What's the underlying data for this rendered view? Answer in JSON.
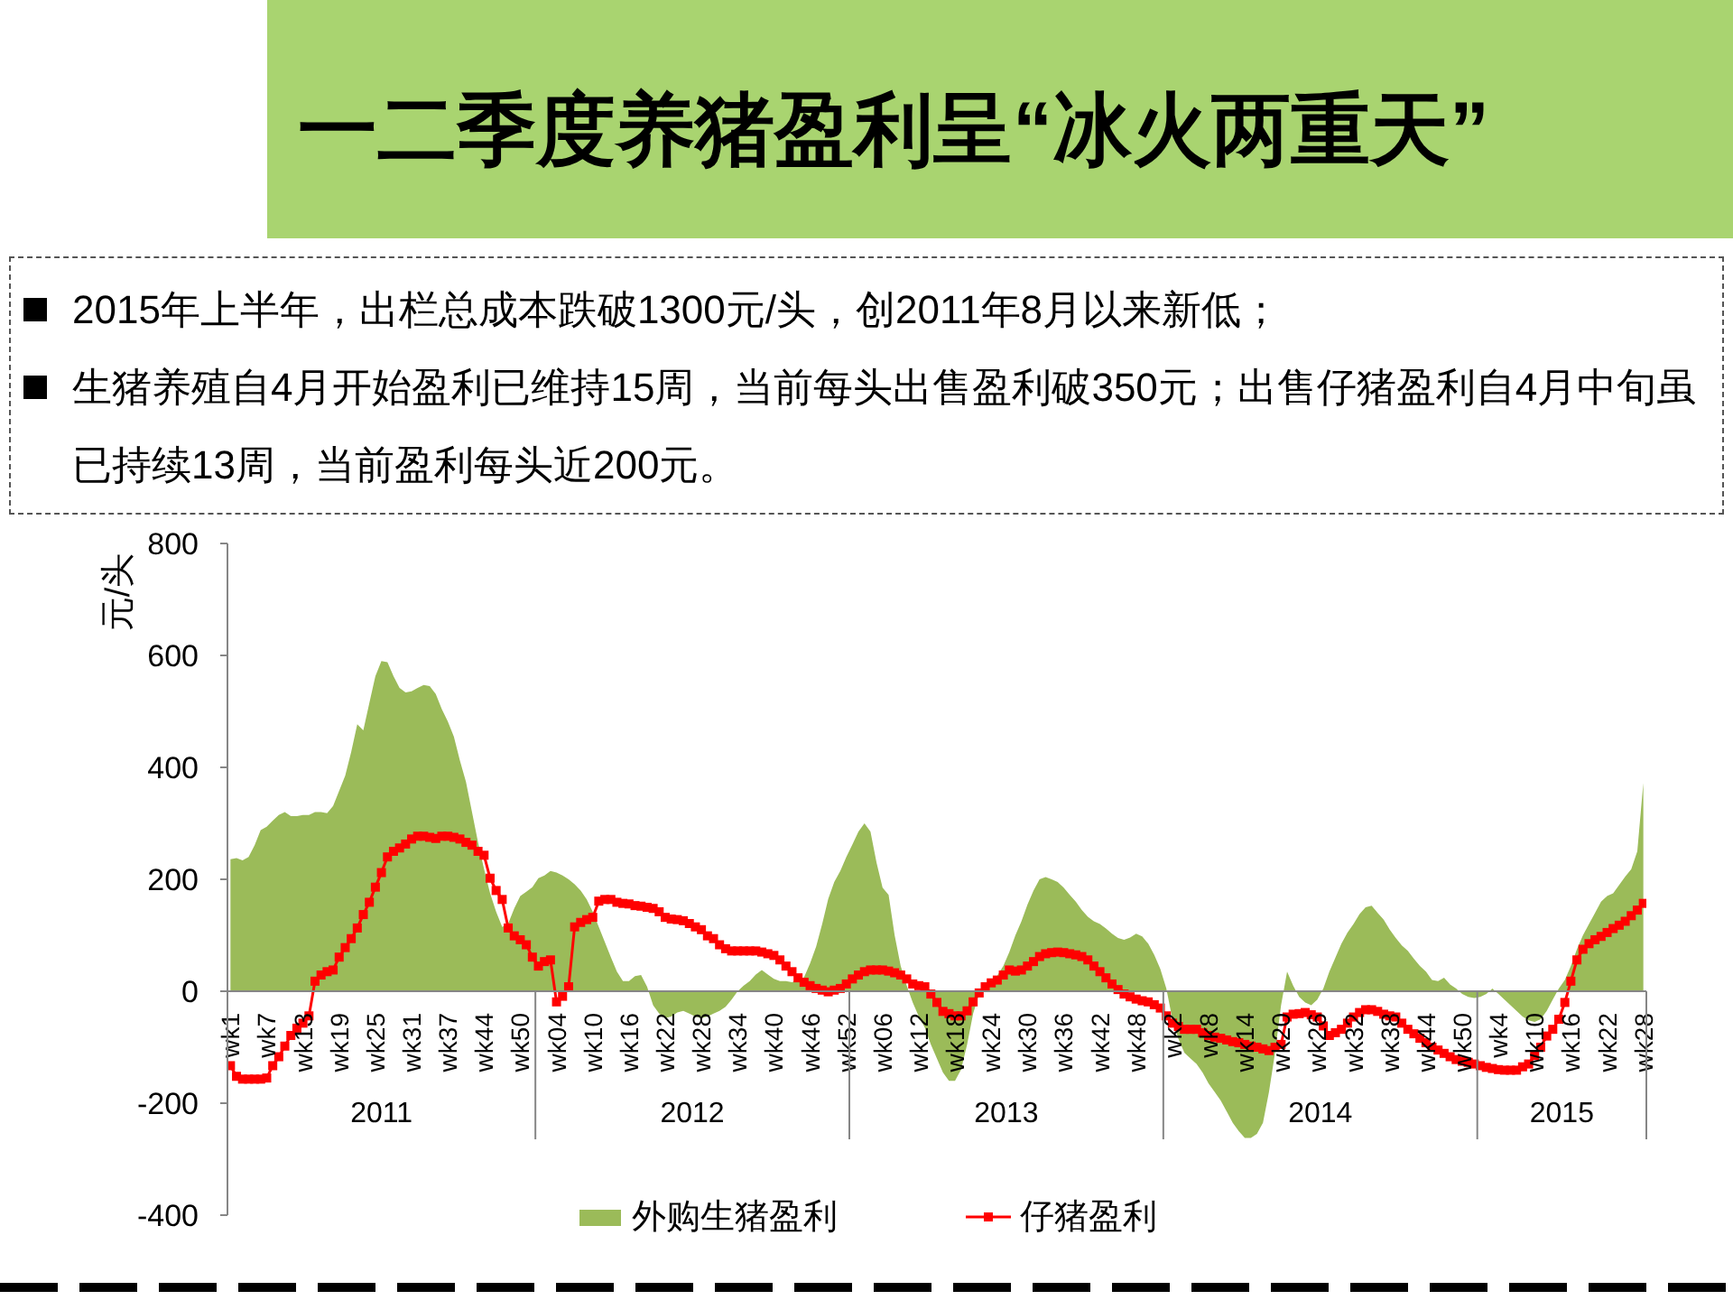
{
  "chart_data": {
    "type": "line",
    "title": "一二季度养猪盈利呈“冰火两重天”",
    "ylabel": "元/头",
    "annotations": [
      "2015年上半年，出栏总成本跌破1300元/头，创2011年8月以来新低；",
      "生猪养殖自4月开始盈利已维持15周，当前每头出售盈利破350元；出售仔猪盈利自4月中旬虽已持续13周，当前盈利每头近200元。",
      "2011",
      "2012",
      "2013",
      "2014",
      "2015"
    ],
    "categories": [
      "wk1",
      null,
      null,
      null,
      null,
      null,
      "wk7",
      null,
      null,
      null,
      null,
      null,
      "wk13",
      null,
      null,
      null,
      null,
      null,
      "wk19",
      null,
      null,
      null,
      null,
      null,
      "wk25",
      null,
      null,
      null,
      null,
      null,
      "wk31",
      null,
      null,
      null,
      null,
      null,
      "wk37",
      null,
      null,
      null,
      null,
      null,
      "wk44",
      null,
      null,
      null,
      null,
      null,
      "wk50",
      null,
      null,
      null,
      null,
      null,
      "wk04",
      null,
      null,
      null,
      null,
      null,
      "wk10",
      null,
      null,
      null,
      null,
      null,
      "wk16",
      null,
      null,
      null,
      null,
      null,
      "wk22",
      null,
      null,
      null,
      null,
      null,
      "wk28",
      null,
      null,
      null,
      null,
      null,
      "wk34",
      null,
      null,
      null,
      null,
      null,
      "wk40",
      null,
      null,
      null,
      null,
      null,
      "wk46",
      null,
      null,
      null,
      null,
      null,
      "wk52",
      null,
      null,
      null,
      null,
      null,
      "wk06",
      null,
      null,
      null,
      null,
      null,
      "wk12",
      null,
      null,
      null,
      null,
      null,
      "wk18",
      null,
      null,
      null,
      null,
      null,
      "wk24",
      null,
      null,
      null,
      null,
      null,
      "wk30",
      null,
      null,
      null,
      null,
      null,
      "wk36",
      null,
      null,
      null,
      null,
      null,
      "wk42",
      null,
      null,
      null,
      null,
      null,
      "wk48",
      null,
      null,
      null,
      null,
      null,
      "wk2",
      null,
      null,
      null,
      null,
      null,
      "wk8",
      null,
      null,
      null,
      null,
      null,
      "wk14",
      null,
      null,
      null,
      null,
      null,
      "wk20",
      null,
      null,
      null,
      null,
      null,
      "wk26",
      null,
      null,
      null,
      null,
      null,
      "wk32",
      null,
      null,
      null,
      null,
      null,
      "wk38",
      null,
      null,
      null,
      null,
      null,
      "wk44",
      null,
      null,
      null,
      null,
      null,
      "wk50",
      null,
      null,
      null,
      null,
      null,
      "wk4",
      null,
      null,
      null,
      null,
      null,
      "wk10",
      null,
      null,
      null,
      null,
      null,
      "wk16",
      null,
      null,
      null,
      null,
      null,
      "wk22",
      null,
      null,
      null,
      null,
      null,
      "wk28"
    ],
    "series": [
      {
        "name": "外购生猪盈利",
        "type": "area",
        "color": "#9bbb59",
        "values": [
          236,
          238,
          234,
          240,
          261,
          288,
          294,
          305,
          315,
          320,
          313,
          313,
          315,
          315,
          320,
          320,
          318,
          331,
          358,
          385,
          428,
          477,
          466,
          515,
          563,
          590,
          588,
          563,
          542,
          534,
          536,
          542,
          547,
          545,
          531,
          504,
          482,
          455,
          412,
          374,
          320,
          266,
          218,
          175,
          142,
          115,
          121,
          148,
          170,
          178,
          186,
          202,
          207,
          215,
          212,
          207,
          200,
          191,
          180,
          164,
          142,
          115,
          88,
          61,
          35,
          18,
          18,
          27,
          29,
          8,
          -25,
          -40,
          -48,
          -45,
          -38,
          -35,
          -40,
          -45,
          -48,
          -45,
          -40,
          -35,
          -28,
          -15,
          0,
          10,
          18,
          30,
          38,
          30,
          22,
          18,
          18,
          16,
          20,
          25,
          50,
          80,
          120,
          165,
          195,
          215,
          240,
          262,
          285,
          300,
          285,
          230,
          185,
          172,
          100,
          45,
          10,
          -20,
          -45,
          -65,
          -95,
          -120,
          -145,
          -160,
          -160,
          -140,
          -95,
          -40,
          -5,
          8,
          15,
          28,
          45,
          70,
          100,
          125,
          155,
          180,
          200,
          204,
          200,
          195,
          185,
          172,
          160,
          145,
          133,
          125,
          120,
          112,
          103,
          95,
          92,
          96,
          103,
          98,
          85,
          65,
          40,
          5,
          -50,
          -85,
          -110,
          -120,
          -130,
          -145,
          -165,
          -180,
          -195,
          -215,
          -235,
          -250,
          -262,
          -262,
          -255,
          -235,
          -180,
          -110,
          -25,
          35,
          10,
          -10,
          -20,
          -25,
          -15,
          5,
          35,
          60,
          85,
          105,
          120,
          138,
          150,
          153,
          140,
          128,
          110,
          95,
          82,
          72,
          58,
          45,
          35,
          20,
          18,
          24,
          12,
          5,
          -5,
          -10,
          -12,
          -10,
          -5,
          5,
          -5,
          -15,
          -25,
          -35,
          -45,
          -52,
          -55,
          -50,
          -35,
          -15,
          5,
          20,
          45,
          75,
          100,
          120,
          140,
          160,
          170,
          175,
          190,
          205,
          218,
          250,
          372
        ]
      },
      {
        "name": "仔猪盈利",
        "color": "#ff0000",
        "marker": "square",
        "values": [
          -133,
          -152,
          -157,
          -157,
          -157,
          -157,
          -155,
          -133,
          -117,
          -98,
          -79,
          -66,
          -57,
          -44,
          18,
          29,
          35,
          38,
          61,
          78,
          94,
          113,
          137,
          159,
          186,
          212,
          240,
          250,
          256,
          263,
          272,
          277,
          277,
          275,
          273,
          277,
          277,
          275,
          272,
          266,
          261,
          250,
          243,
          202,
          180,
          164,
          113,
          99,
          92,
          83,
          61,
          45,
          53,
          56,
          -19,
          -9,
          8,
          115,
          123,
          128,
          132,
          161,
          164,
          164,
          159,
          157,
          156,
          153,
          152,
          150,
          148,
          142,
          132,
          129,
          128,
          126,
          121,
          115,
          110,
          99,
          94,
          83,
          76,
          72,
          72,
          72,
          72,
          72,
          70,
          67,
          64,
          56,
          45,
          35,
          24,
          16,
          10,
          5,
          2,
          -1,
          2,
          5,
          13,
          22,
          29,
          35,
          38,
          38,
          38,
          36,
          33,
          29,
          22,
          13,
          10,
          8,
          -5,
          -20,
          -36,
          -40,
          -44,
          -44,
          -35,
          -19,
          -3,
          8,
          15,
          20,
          29,
          38,
          36,
          38,
          45,
          53,
          62,
          67,
          69,
          70,
          69,
          67,
          65,
          62,
          56,
          45,
          35,
          24,
          13,
          3,
          -5,
          -10,
          -14,
          -17,
          -19,
          -24,
          -30,
          -44,
          -57,
          -63,
          -68,
          -68,
          -68,
          -74,
          -79,
          -82,
          -84,
          -87,
          -90,
          -92,
          -95,
          -98,
          -100,
          -103,
          -106,
          -100,
          -95,
          -46,
          -41,
          -40,
          -38,
          -42,
          -46,
          -62,
          -79,
          -74,
          -68,
          -57,
          -46,
          -38,
          -33,
          -33,
          -36,
          -41,
          -44,
          -46,
          -57,
          -68,
          -76,
          -84,
          -92,
          -100,
          -105,
          -111,
          -117,
          -122,
          -125,
          -127,
          -130,
          -133,
          -136,
          -138,
          -140,
          -141,
          -141,
          -141,
          -135,
          -130,
          -115,
          -100,
          -80,
          -68,
          -50,
          -20,
          18,
          56,
          75,
          85,
          92,
          98,
          105,
          112,
          118,
          125,
          135,
          145,
          157
        ]
      }
    ],
    "ylim": [
      -400,
      800
    ],
    "yticks": [
      -400,
      -200,
      0,
      200,
      400,
      600,
      800
    ],
    "legend": "bottom"
  }
}
